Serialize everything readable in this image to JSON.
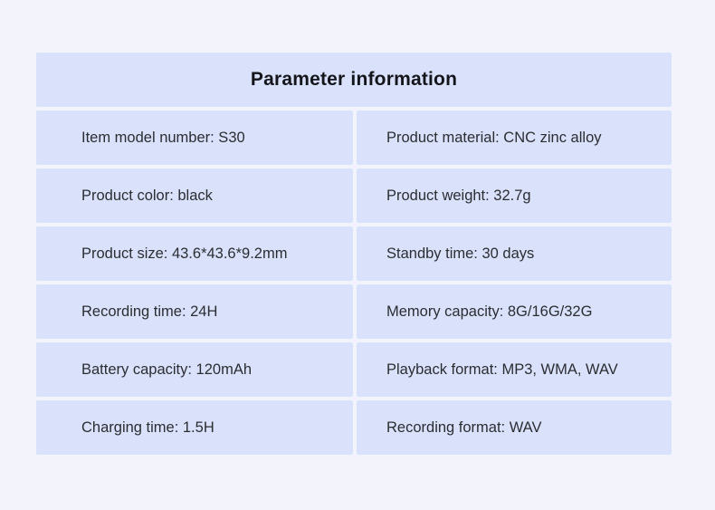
{
  "page": {
    "background_color": "#f2f3fb",
    "cell_color": "#d9e2fa"
  },
  "table": {
    "title": "Parameter information",
    "rows": [
      {
        "left": "Item model number: S30",
        "right": "Product material: CNC zinc alloy"
      },
      {
        "left": "Product color: black",
        "right": "Product weight: 32.7g"
      },
      {
        "left": "Product size: 43.6*43.6*9.2mm",
        "right": "Standby time: 30 days"
      },
      {
        "left": "Recording time: 24H",
        "right": "Memory capacity: 8G/16G/32G"
      },
      {
        "left": "Battery capacity: 120mAh",
        "right": "Playback format: MP3, WMA, WAV"
      },
      {
        "left": "Charging time: 1.5H",
        "right": "Recording format: WAV"
      }
    ]
  }
}
